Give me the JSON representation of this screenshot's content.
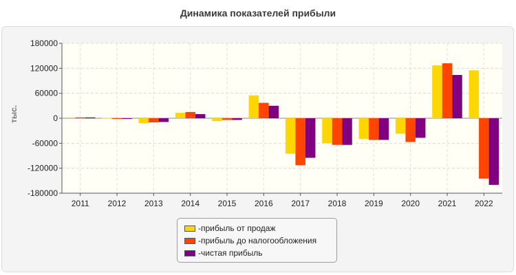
{
  "chart_data": {
    "type": "bar",
    "title": "Динамика показателей прибыли",
    "ylabel": "тыс.",
    "xlabel": "",
    "ylim": [
      -180000,
      180000
    ],
    "yticks": [
      180000,
      120000,
      60000,
      0,
      -60000,
      -120000,
      -180000
    ],
    "grid": true,
    "legend_position": "bottom-center",
    "categories": [
      "2011",
      "2012",
      "2013",
      "2014",
      "2015",
      "2016",
      "2017",
      "2018",
      "2019",
      "2020",
      "2021",
      "2022"
    ],
    "series": [
      {
        "name": "прибыль от продаж",
        "color": "#ffd700",
        "values": [
          2000,
          1000,
          -12000,
          13000,
          -7000,
          55000,
          -85000,
          -60000,
          -50000,
          -37000,
          127000,
          115000
        ]
      },
      {
        "name": "прибыль до налогообложения",
        "color": "#ff4500",
        "values": [
          2000,
          -1000,
          -10000,
          15000,
          -4000,
          37000,
          -113000,
          -64000,
          -52000,
          -57000,
          132000,
          -145000
        ]
      },
      {
        "name": "чистая прибыль",
        "color": "#800080",
        "values": [
          2000,
          -1000,
          -9000,
          10000,
          -4000,
          30000,
          -95000,
          -64000,
          -52000,
          -47000,
          104000,
          -160000
        ]
      }
    ]
  }
}
